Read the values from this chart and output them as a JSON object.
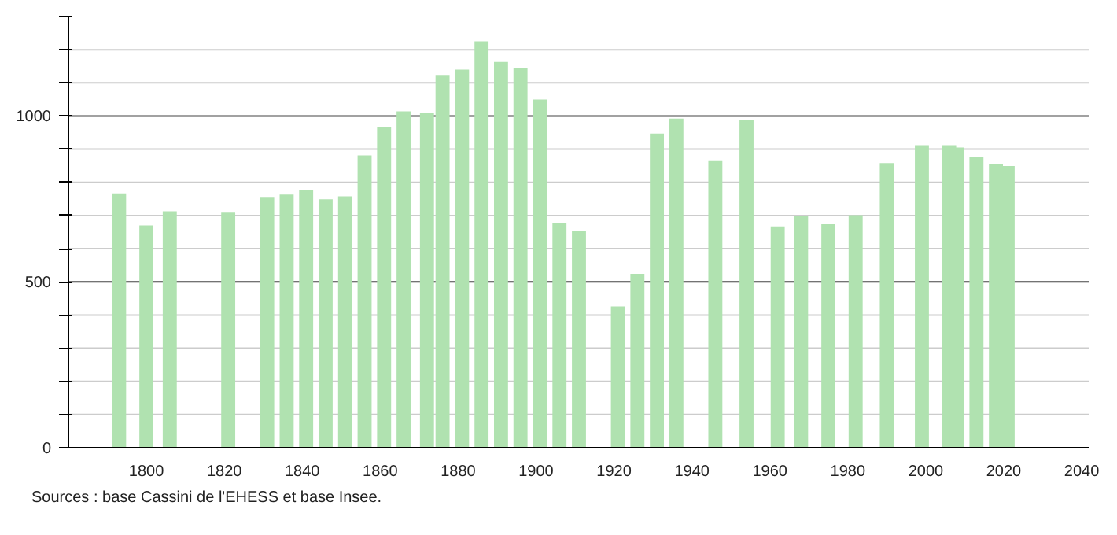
{
  "chart_data": {
    "type": "bar",
    "x": [
      1793,
      1800,
      1806,
      1821,
      1831,
      1836,
      1841,
      1846,
      1851,
      1856,
      1861,
      1866,
      1872,
      1876,
      1881,
      1886,
      1891,
      1896,
      1901,
      1906,
      1911,
      1921,
      1926,
      1931,
      1936,
      1946,
      1954,
      1962,
      1968,
      1975,
      1982,
      1990,
      1999,
      2006,
      2008,
      2013,
      2018,
      2021
    ],
    "values": [
      767,
      670,
      713,
      709,
      754,
      763,
      778,
      749,
      758,
      881,
      966,
      1014,
      1008,
      1124,
      1140,
      1225,
      1163,
      1146,
      1050,
      677,
      655,
      426,
      524,
      947,
      992,
      864,
      989,
      667,
      700,
      674,
      701,
      858,
      912,
      912,
      905,
      876,
      854,
      849
    ],
    "color": "#b0e2b0",
    "xlim": [
      1780,
      2042
    ],
    "xticks": [
      1800,
      1820,
      1840,
      1860,
      1880,
      1900,
      1920,
      1940,
      1960,
      1980,
      2000,
      2020,
      2040
    ],
    "ylim": [
      0,
      1300
    ],
    "yticks": [
      0,
      {
        "value": 100,
        "label": null
      },
      {
        "value": 200,
        "label": null
      },
      {
        "value": 300,
        "label": null
      },
      {
        "value": 400,
        "label": null
      },
      500,
      {
        "value": 600,
        "label": null
      },
      {
        "value": 700,
        "label": null
      },
      {
        "value": 800,
        "label": null
      },
      {
        "value": 900,
        "label": null
      },
      1000,
      {
        "value": 1100,
        "label": null
      },
      {
        "value": 1200,
        "label": null
      },
      {
        "value": 1300,
        "label": null
      }
    ],
    "grid": "y",
    "annotations": [
      "Sources : base Cassini de l'EHESS et base Insee."
    ]
  }
}
